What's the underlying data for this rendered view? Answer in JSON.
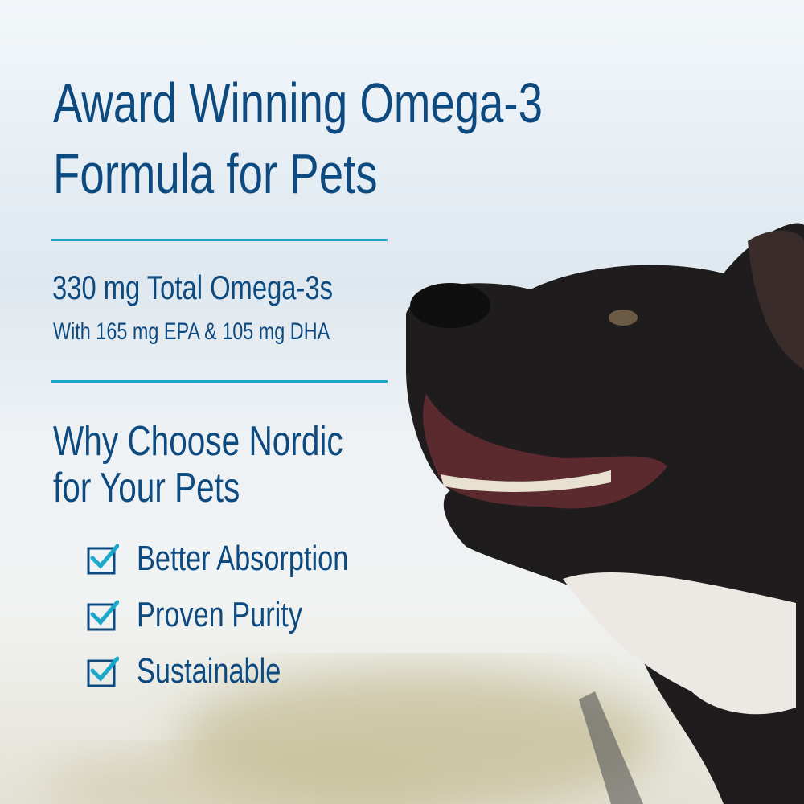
{
  "headline": "Award Winning Omega-3 Formula for Pets",
  "headline_lines": [
    "Award Winning Omega-3",
    "Formula for Pets"
  ],
  "total": "330 mg Total Omega-3s",
  "breakdown": "With 165 mg EPA & 105 mg DHA",
  "why_lines": [
    "Why Choose Nordic",
    "for Your Pets"
  ],
  "features": [
    {
      "icon": "checkbox-checked-icon",
      "label": "Better Absorption"
    },
    {
      "icon": "checkbox-checked-icon",
      "label": "Proven Purity"
    },
    {
      "icon": "checkbox-checked-icon",
      "label": "Sustainable"
    }
  ],
  "colors": {
    "text": "#0d4a80",
    "accent": "#1aa7cc"
  }
}
